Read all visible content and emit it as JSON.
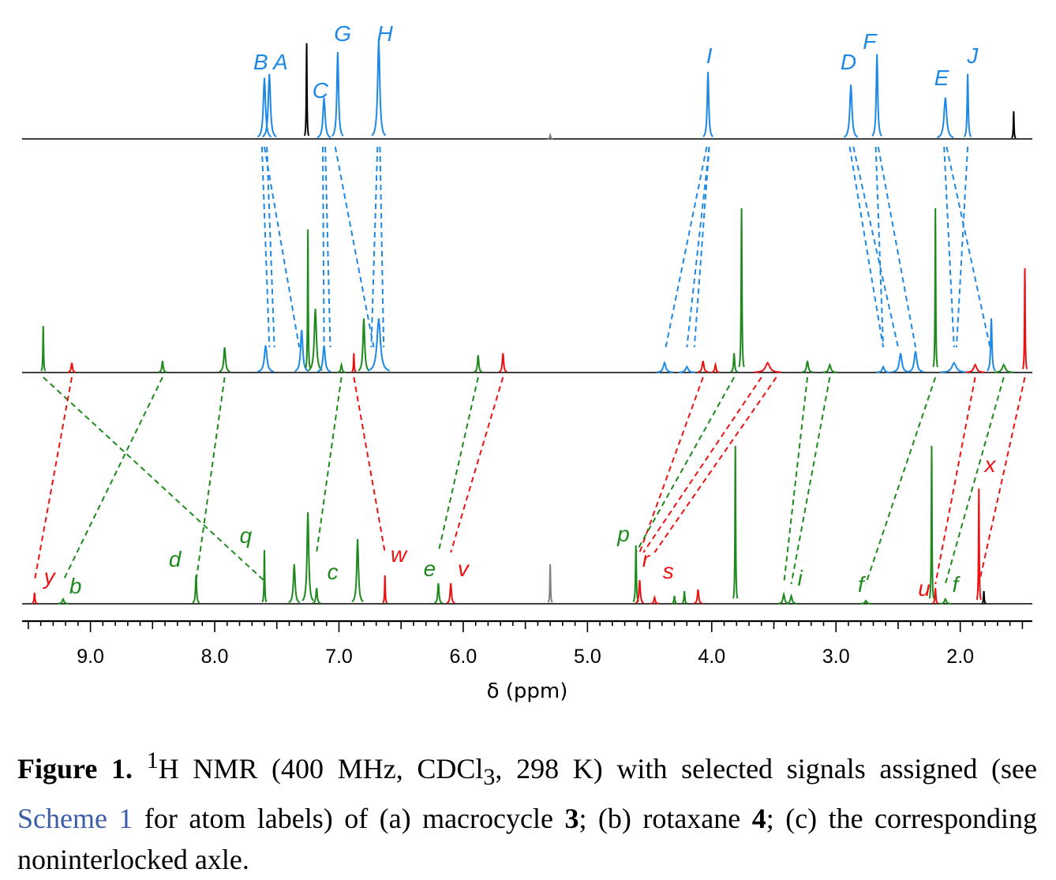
{
  "chart_data": {
    "type": "line",
    "xlabel": "δ  (ppm)",
    "xlim": [
      9.55,
      1.42
    ],
    "x_ticks": [
      "9.0",
      "8.0",
      "7.0",
      "6.0",
      "5.0",
      "4.0",
      "3.0",
      "2.0"
    ],
    "x_tick_values": [
      9.0,
      8.0,
      7.0,
      6.0,
      5.0,
      4.0,
      3.0,
      2.0
    ],
    "grid": false,
    "colors": {
      "blue": "#1e88e5",
      "green": "#1e8a1e",
      "red": "#ee1111",
      "black": "#000000",
      "gray": "#808080"
    },
    "series": [
      {
        "peaks": [
          {
            "x": 7.6,
            "h": 0.62,
            "w": 0.05,
            "c": "blue"
          },
          {
            "x": 7.56,
            "h": 0.66,
            "w": 0.05,
            "c": "blue"
          },
          {
            "x": 7.26,
            "h": 0.97,
            "w": 0.006,
            "c": "black"
          },
          {
            "x": 7.12,
            "h": 0.42,
            "w": 0.05,
            "c": "blue"
          },
          {
            "x": 7.01,
            "h": 0.88,
            "w": 0.04,
            "c": "blue"
          },
          {
            "x": 6.68,
            "h": 1.0,
            "w": 0.05,
            "c": "blue"
          },
          {
            "x": 5.3,
            "h": 0.04,
            "w": 0.02,
            "c": "gray"
          },
          {
            "x": 4.03,
            "h": 0.68,
            "w": 0.035,
            "c": "blue"
          },
          {
            "x": 2.88,
            "h": 0.55,
            "w": 0.05,
            "c": "blue"
          },
          {
            "x": 2.67,
            "h": 0.86,
            "w": 0.035,
            "c": "blue"
          },
          {
            "x": 2.12,
            "h": 0.42,
            "w": 0.06,
            "c": "blue"
          },
          {
            "x": 1.94,
            "h": 0.66,
            "w": 0.025,
            "c": "blue"
          },
          {
            "x": 1.57,
            "h": 0.28,
            "w": 0.006,
            "c": "black"
          }
        ],
        "labels": [
          {
            "t": "B",
            "x": 7.63,
            "c": "blue"
          },
          {
            "t": "A",
            "x": 7.47,
            "c": "blue"
          },
          {
            "t": "C",
            "x": 7.15,
            "c": "blue"
          },
          {
            "t": "G",
            "x": 6.97,
            "c": "blue"
          },
          {
            "t": "H",
            "x": 6.63,
            "c": "blue"
          },
          {
            "t": "I",
            "x": 4.02,
            "c": "blue"
          },
          {
            "t": "D",
            "x": 2.9,
            "c": "blue"
          },
          {
            "t": "F",
            "x": 2.73,
            "c": "blue"
          },
          {
            "t": "E",
            "x": 2.15,
            "c": "blue"
          },
          {
            "t": "J",
            "x": 1.9,
            "c": "blue"
          }
        ]
      },
      {
        "peaks": [
          {
            "x": 9.38,
            "h": 0.24,
            "w": 0.012,
            "c": "green"
          },
          {
            "x": 9.15,
            "h": 0.05,
            "w": 0.03,
            "c": "red"
          },
          {
            "x": 8.42,
            "h": 0.06,
            "w": 0.03,
            "c": "green"
          },
          {
            "x": 7.92,
            "h": 0.13,
            "w": 0.04,
            "c": "green"
          },
          {
            "x": 7.59,
            "h": 0.14,
            "w": 0.06,
            "c": "blue"
          },
          {
            "x": 7.3,
            "h": 0.22,
            "w": 0.05,
            "c": "blue"
          },
          {
            "x": 7.25,
            "h": 0.74,
            "w": 0.01,
            "c": "green"
          },
          {
            "x": 7.19,
            "h": 0.33,
            "w": 0.05,
            "c": "green"
          },
          {
            "x": 7.12,
            "h": 0.14,
            "w": 0.05,
            "c": "blue"
          },
          {
            "x": 6.98,
            "h": 0.04,
            "w": 0.03,
            "c": "green"
          },
          {
            "x": 6.88,
            "h": 0.1,
            "w": 0.015,
            "c": "red"
          },
          {
            "x": 6.8,
            "h": 0.28,
            "w": 0.04,
            "c": "green"
          },
          {
            "x": 6.68,
            "h": 0.28,
            "w": 0.08,
            "c": "blue"
          },
          {
            "x": 5.88,
            "h": 0.09,
            "w": 0.03,
            "c": "green"
          },
          {
            "x": 5.68,
            "h": 0.1,
            "w": 0.03,
            "c": "red"
          },
          {
            "x": 4.38,
            "h": 0.05,
            "w": 0.06,
            "c": "blue"
          },
          {
            "x": 4.2,
            "h": 0.03,
            "w": 0.06,
            "c": "blue"
          },
          {
            "x": 4.07,
            "h": 0.06,
            "w": 0.04,
            "c": "red"
          },
          {
            "x": 3.97,
            "h": 0.04,
            "w": 0.03,
            "c": "red"
          },
          {
            "x": 3.82,
            "h": 0.1,
            "w": 0.025,
            "c": "green"
          },
          {
            "x": 3.76,
            "h": 0.85,
            "w": 0.018,
            "c": "green"
          },
          {
            "x": 3.55,
            "h": 0.05,
            "w": 0.1,
            "c": "red"
          },
          {
            "x": 3.23,
            "h": 0.06,
            "w": 0.04,
            "c": "green"
          },
          {
            "x": 3.05,
            "h": 0.04,
            "w": 0.05,
            "c": "green"
          },
          {
            "x": 2.62,
            "h": 0.03,
            "w": 0.05,
            "c": "blue"
          },
          {
            "x": 2.48,
            "h": 0.1,
            "w": 0.06,
            "c": "blue"
          },
          {
            "x": 2.36,
            "h": 0.11,
            "w": 0.06,
            "c": "blue"
          },
          {
            "x": 2.2,
            "h": 0.85,
            "w": 0.01,
            "c": "green"
          },
          {
            "x": 2.05,
            "h": 0.05,
            "w": 0.1,
            "c": "blue"
          },
          {
            "x": 1.88,
            "h": 0.04,
            "w": 0.07,
            "c": "red"
          },
          {
            "x": 1.75,
            "h": 0.28,
            "w": 0.03,
            "c": "blue"
          },
          {
            "x": 1.65,
            "h": 0.04,
            "w": 0.07,
            "c": "green"
          },
          {
            "x": 1.48,
            "h": 0.54,
            "w": 0.008,
            "c": "red"
          }
        ],
        "labels": []
      },
      {
        "peaks": [
          {
            "x": 9.45,
            "h": 0.07,
            "w": 0.02,
            "c": "red"
          },
          {
            "x": 9.22,
            "h": 0.03,
            "w": 0.04,
            "c": "green"
          },
          {
            "x": 8.15,
            "h": 0.18,
            "w": 0.025,
            "c": "green"
          },
          {
            "x": 7.6,
            "h": 0.34,
            "w": 0.008,
            "c": "green"
          },
          {
            "x": 7.36,
            "h": 0.25,
            "w": 0.04,
            "c": "green"
          },
          {
            "x": 7.25,
            "h": 0.58,
            "w": 0.04,
            "c": "green"
          },
          {
            "x": 7.18,
            "h": 0.1,
            "w": 0.03,
            "c": "green"
          },
          {
            "x": 6.85,
            "h": 0.41,
            "w": 0.04,
            "c": "green"
          },
          {
            "x": 6.63,
            "h": 0.18,
            "w": 0.01,
            "c": "red"
          },
          {
            "x": 6.2,
            "h": 0.13,
            "w": 0.03,
            "c": "green"
          },
          {
            "x": 6.1,
            "h": 0.13,
            "w": 0.03,
            "c": "red"
          },
          {
            "x": 5.3,
            "h": 0.25,
            "w": 0.006,
            "c": "gray"
          },
          {
            "x": 4.61,
            "h": 0.37,
            "w": 0.02,
            "c": "green"
          },
          {
            "x": 4.58,
            "h": 0.15,
            "w": 0.03,
            "c": "red"
          },
          {
            "x": 4.46,
            "h": 0.04,
            "w": 0.03,
            "c": "red"
          },
          {
            "x": 4.3,
            "h": 0.05,
            "w": 0.02,
            "c": "green"
          },
          {
            "x": 4.22,
            "h": 0.08,
            "w": 0.02,
            "c": "green"
          },
          {
            "x": 4.11,
            "h": 0.09,
            "w": 0.03,
            "c": "red"
          },
          {
            "x": 3.81,
            "h": 1.0,
            "w": 0.015,
            "c": "green"
          },
          {
            "x": 3.42,
            "h": 0.06,
            "w": 0.04,
            "c": "green"
          },
          {
            "x": 3.36,
            "h": 0.05,
            "w": 0.04,
            "c": "green"
          },
          {
            "x": 2.76,
            "h": 0.02,
            "w": 0.04,
            "c": "green"
          },
          {
            "x": 2.23,
            "h": 1.0,
            "w": 0.01,
            "c": "green"
          },
          {
            "x": 2.2,
            "h": 0.1,
            "w": 0.02,
            "c": "red"
          },
          {
            "x": 2.12,
            "h": 0.03,
            "w": 0.04,
            "c": "green"
          },
          {
            "x": 1.85,
            "h": 0.73,
            "w": 0.01,
            "c": "red"
          },
          {
            "x": 1.81,
            "h": 0.08,
            "w": 0.01,
            "c": "black"
          }
        ],
        "labels": [
          {
            "t": "y",
            "x": 9.33,
            "c": "red"
          },
          {
            "t": "b",
            "x": 9.12,
            "c": "green"
          },
          {
            "t": "d",
            "x": 8.32,
            "c": "green"
          },
          {
            "t": "q",
            "x": 7.75,
            "c": "green"
          },
          {
            "t": "c",
            "x": 7.05,
            "c": "green"
          },
          {
            "t": "w",
            "x": 6.52,
            "c": "red"
          },
          {
            "t": "e",
            "x": 6.27,
            "c": "green"
          },
          {
            "t": "v",
            "x": 6.0,
            "c": "red"
          },
          {
            "t": "p",
            "x": 4.71,
            "c": "green"
          },
          {
            "t": "r",
            "x": 4.53,
            "c": "red"
          },
          {
            "t": "s",
            "x": 4.35,
            "c": "red"
          },
          {
            "t": "i",
            "x": 3.29,
            "c": "green"
          },
          {
            "t": "f",
            "x": 2.8,
            "c": "green"
          },
          {
            "t": "u",
            "x": 2.29,
            "c": "red"
          },
          {
            "t": "f",
            "x": 2.04,
            "c": "green"
          },
          {
            "t": "x",
            "x": 1.76,
            "c": "red"
          }
        ]
      }
    ],
    "correlations": [
      {
        "from": 7.62,
        "to": 7.56,
        "c": "blue",
        "a": 0,
        "b": 1
      },
      {
        "from": 7.58,
        "to": 7.52,
        "c": "blue",
        "a": 0,
        "b": 1
      },
      {
        "from": 7.6,
        "to": 7.32,
        "c": "blue",
        "a": 0,
        "b": 1
      },
      {
        "from": 7.13,
        "to": 7.12,
        "c": "blue",
        "a": 0,
        "b": 1
      },
      {
        "from": 7.11,
        "to": 7.07,
        "c": "blue",
        "a": 0,
        "b": 1
      },
      {
        "from": 7.03,
        "to": 6.72,
        "c": "blue",
        "a": 0,
        "b": 1
      },
      {
        "from": 6.69,
        "to": 6.74,
        "c": "blue",
        "a": 0,
        "b": 1
      },
      {
        "from": 6.67,
        "to": 6.64,
        "c": "blue",
        "a": 0,
        "b": 1
      },
      {
        "from": 4.04,
        "to": 4.37,
        "c": "blue",
        "a": 0,
        "b": 1
      },
      {
        "from": 4.02,
        "to": 4.2,
        "c": "blue",
        "a": 0,
        "b": 1
      },
      {
        "from": 4.02,
        "to": 4.14,
        "c": "blue",
        "a": 0,
        "b": 1
      },
      {
        "from": 2.89,
        "to": 2.62,
        "c": "blue",
        "a": 0,
        "b": 1
      },
      {
        "from": 2.86,
        "to": 2.5,
        "c": "blue",
        "a": 0,
        "b": 1
      },
      {
        "from": 2.68,
        "to": 2.62,
        "c": "blue",
        "a": 0,
        "b": 1
      },
      {
        "from": 2.66,
        "to": 2.36,
        "c": "blue",
        "a": 0,
        "b": 1
      },
      {
        "from": 2.13,
        "to": 2.05,
        "c": "blue",
        "a": 0,
        "b": 1
      },
      {
        "from": 2.11,
        "to": 1.76,
        "c": "blue",
        "a": 0,
        "b": 1
      },
      {
        "from": 1.94,
        "to": 2.03,
        "c": "blue",
        "a": 0,
        "b": 1
      },
      {
        "from": 9.38,
        "to": 7.6,
        "c": "green",
        "a": 1,
        "b": 2
      },
      {
        "from": 9.15,
        "to": 9.45,
        "c": "red",
        "a": 1,
        "b": 2
      },
      {
        "from": 8.42,
        "to": 9.22,
        "c": "green",
        "a": 1,
        "b": 2
      },
      {
        "from": 7.92,
        "to": 8.15,
        "c": "green",
        "a": 1,
        "b": 2
      },
      {
        "from": 6.98,
        "to": 7.18,
        "c": "green",
        "a": 1,
        "b": 2
      },
      {
        "from": 6.88,
        "to": 6.63,
        "c": "red",
        "a": 1,
        "b": 2
      },
      {
        "from": 5.88,
        "to": 6.2,
        "c": "green",
        "a": 1,
        "b": 2
      },
      {
        "from": 5.68,
        "to": 6.1,
        "c": "red",
        "a": 1,
        "b": 2
      },
      {
        "from": 4.07,
        "to": 4.58,
        "c": "red",
        "a": 1,
        "b": 2
      },
      {
        "from": 3.82,
        "to": 4.61,
        "c": "green",
        "a": 1,
        "b": 2
      },
      {
        "from": 3.6,
        "to": 4.55,
        "c": "red",
        "a": 1,
        "b": 2
      },
      {
        "from": 3.48,
        "to": 4.46,
        "c": "red",
        "a": 1,
        "b": 2
      },
      {
        "from": 3.23,
        "to": 3.42,
        "c": "green",
        "a": 1,
        "b": 2
      },
      {
        "from": 3.05,
        "to": 3.36,
        "c": "green",
        "a": 1,
        "b": 2
      },
      {
        "from": 2.2,
        "to": 2.76,
        "c": "green",
        "a": 1,
        "b": 2
      },
      {
        "from": 1.88,
        "to": 2.2,
        "c": "red",
        "a": 1,
        "b": 2
      },
      {
        "from": 1.65,
        "to": 2.12,
        "c": "green",
        "a": 1,
        "b": 2
      },
      {
        "from": 1.48,
        "to": 1.85,
        "c": "red",
        "a": 1,
        "b": 2
      }
    ]
  },
  "caption": {
    "figure_label": "Figure 1.",
    "superscript": "1",
    "text_part1": "H NMR (400 MHz, CDCl",
    "subscript": "3",
    "text_part2": ", 298 K) with selected signals assigned (see ",
    "link_text": "Scheme 1",
    "text_part3": " for atom labels) of (a) macrocycle ",
    "bold_3": "3",
    "text_part4": "; (b) rotaxane ",
    "bold_4": "4",
    "text_part5": "; (c) the corresponding noninterlocked axle."
  }
}
